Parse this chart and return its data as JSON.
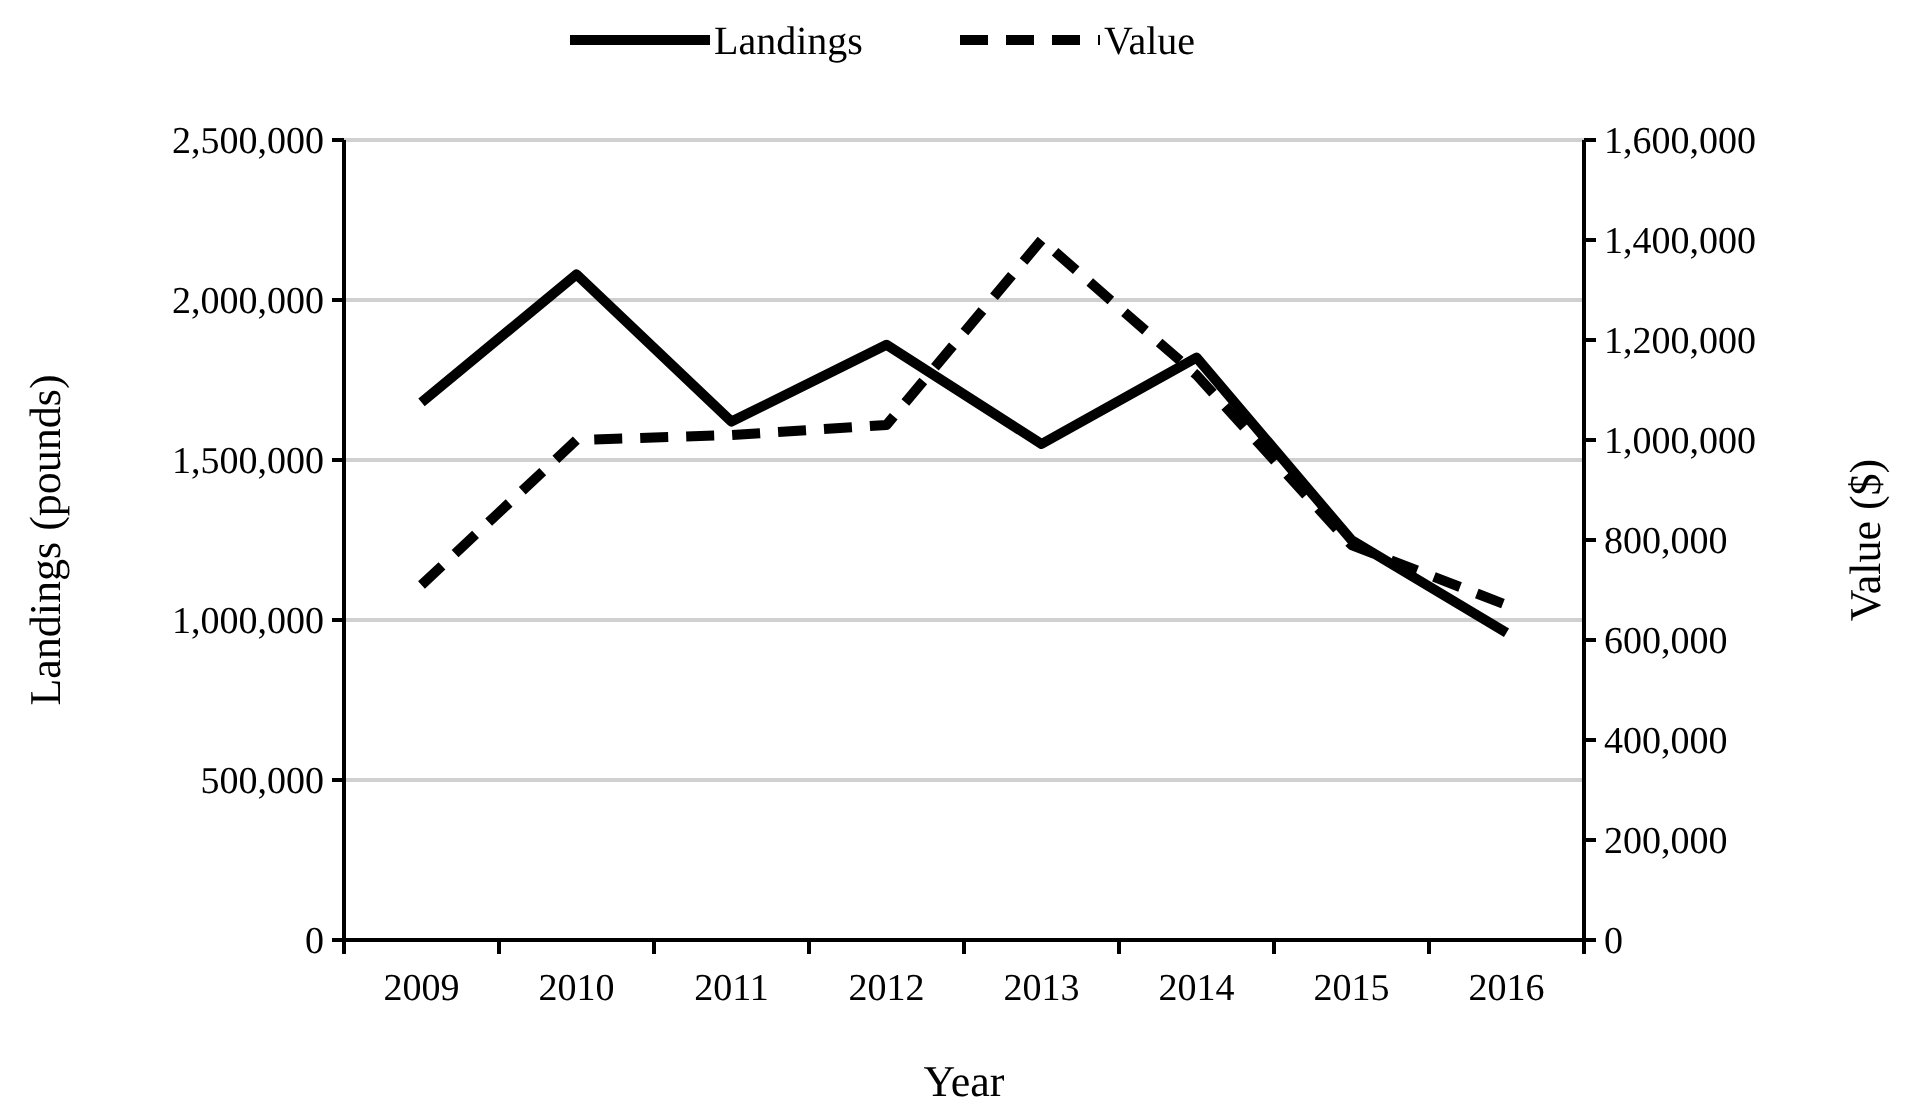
{
  "chart_data": {
    "type": "line",
    "xlabel": "Year",
    "ylabel": "Landings (pounds)",
    "y2label": "Value ($)",
    "categories": [
      "2009",
      "2010",
      "2011",
      "2012",
      "2013",
      "2014",
      "2015",
      "2016"
    ],
    "series": [
      {
        "name": "Landings",
        "color": "#000000",
        "line_style": "solid",
        "values": [
          1680000,
          2080000,
          1620000,
          1860000,
          1550000,
          1820000,
          1250000,
          960000
        ]
      },
      {
        "name": "Value",
        "color": "#000000",
        "line_style": "dashed",
        "axis": "y2",
        "values": [
          710000,
          1000000,
          1010000,
          1030000,
          1400000,
          1130000,
          790000,
          670000
        ]
      }
    ],
    "ylim": [
      0,
      2500000
    ],
    "yticks": [
      {
        "value": 0,
        "label": "0"
      },
      {
        "value": 500000,
        "label": "500,000"
      },
      {
        "value": 1000000,
        "label": "1,000,000"
      },
      {
        "value": 1500000,
        "label": "1,500,000"
      },
      {
        "value": 2000000,
        "label": "2,000,000"
      },
      {
        "value": 2500000,
        "label": "2,500,000"
      }
    ],
    "y2lim": [
      0,
      1600000
    ],
    "y2ticks": [
      {
        "value": 0,
        "label": "0"
      },
      {
        "value": 200000,
        "label": "200,000"
      },
      {
        "value": 400000,
        "label": "400,000"
      },
      {
        "value": 600000,
        "label": "600,000"
      },
      {
        "value": 800000,
        "label": "800,000"
      },
      {
        "value": 1000000,
        "label": "1,000,000"
      },
      {
        "value": 1200000,
        "label": "1,200,000"
      },
      {
        "value": 1400000,
        "label": "1,400,000"
      },
      {
        "value": 1600000,
        "label": "1,600,000"
      }
    ],
    "grid": "y",
    "legend": "top",
    "marker": "none"
  }
}
